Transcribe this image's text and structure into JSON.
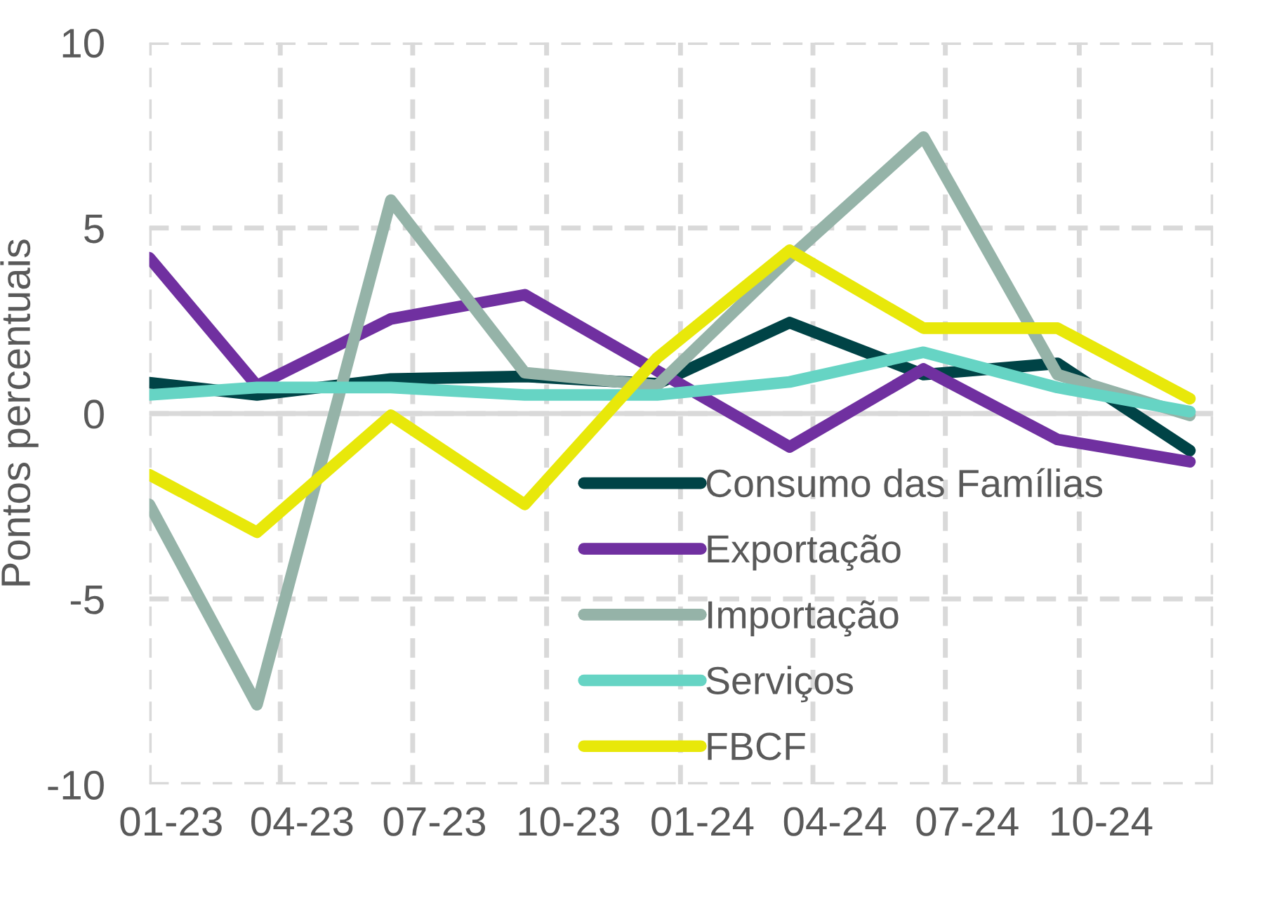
{
  "chart_data": {
    "type": "line",
    "ylabel": "Pontos percentuais",
    "x": [
      "2023-01-01",
      "2023-03-16",
      "2023-06-16",
      "2023-09-16",
      "2023-12-16",
      "2024-03-16",
      "2024-06-16",
      "2024-09-16",
      "2024-12-16"
    ],
    "xlim": [
      "2023-01-01",
      "2025-01-01"
    ],
    "xticks": [
      {
        "value": "2023-01-01",
        "label": null
      },
      {
        "value": "2023-01-16",
        "label": "01-23"
      },
      {
        "value": "2023-04-01",
        "label": null
      },
      {
        "value": "2023-04-16",
        "label": "04-23"
      },
      {
        "value": "2023-07-01",
        "label": null
      },
      {
        "value": "2023-07-16",
        "label": "07-23"
      },
      {
        "value": "2023-10-01",
        "label": null
      },
      {
        "value": "2023-10-16",
        "label": "10-23"
      },
      {
        "value": "2024-01-01",
        "label": null
      },
      {
        "value": "2024-01-16",
        "label": "01-24"
      },
      {
        "value": "2024-04-01",
        "label": null
      },
      {
        "value": "2024-04-16",
        "label": "04-24"
      },
      {
        "value": "2024-07-01",
        "label": null
      },
      {
        "value": "2024-07-16",
        "label": "07-24"
      },
      {
        "value": "2024-10-01",
        "label": null
      },
      {
        "value": "2024-10-16",
        "label": "10-24"
      },
      {
        "value": "2025-01-01",
        "label": null
      }
    ],
    "ylim": [
      -10,
      10
    ],
    "yticks": [
      -10,
      -5,
      0,
      5,
      10
    ],
    "grid": true,
    "legend": "bottom right",
    "line_style": "solid",
    "marker": "none",
    "ref_lines": [
      {
        "axis": "y",
        "value": 0,
        "color": "#d9d9d9",
        "line_style": "solid"
      }
    ],
    "series": [
      {
        "name": "Consumo das Famílias",
        "color": "#004346",
        "values": [
          0.83,
          0.5,
          0.93,
          1.0,
          0.8,
          2.45,
          1.05,
          1.35,
          -1.0
        ]
      },
      {
        "name": "Exportação",
        "color": "#7030a0",
        "values": [
          4.2,
          0.75,
          2.55,
          3.2,
          1.15,
          -0.9,
          1.2,
          -0.7,
          -1.3
        ]
      },
      {
        "name": "Importação",
        "color": "#95b3a8",
        "values": [
          -2.45,
          -7.85,
          5.75,
          1.1,
          0.75,
          4.2,
          7.45,
          1.05,
          -0.05
        ]
      },
      {
        "name": "Serviços",
        "color": "#66d4c4",
        "values": [
          0.5,
          0.7,
          0.7,
          0.5,
          0.5,
          0.85,
          1.65,
          0.7,
          0.05
        ]
      },
      {
        "name": "FBCF",
        "color": "#e8e80a",
        "values": [
          -1.65,
          -3.2,
          -0.05,
          -2.45,
          1.5,
          4.4,
          2.3,
          2.3,
          0.4
        ]
      }
    ]
  }
}
